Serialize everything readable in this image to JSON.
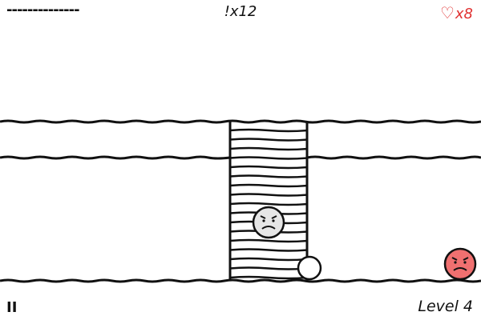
{
  "hud": {
    "progress_dashes": "--------------",
    "counter": "!x12",
    "lives_count": "x8",
    "pause_label": "II",
    "level_label": "Level 4"
  },
  "colors": {
    "ink": "#111111",
    "enemy_red": "#f07070",
    "enemy_gray": "#e6e6e6",
    "heart": "#e03030",
    "background": "#ffffff"
  },
  "icons": {
    "lives": "heart-icon",
    "pause": "pause-icon"
  }
}
